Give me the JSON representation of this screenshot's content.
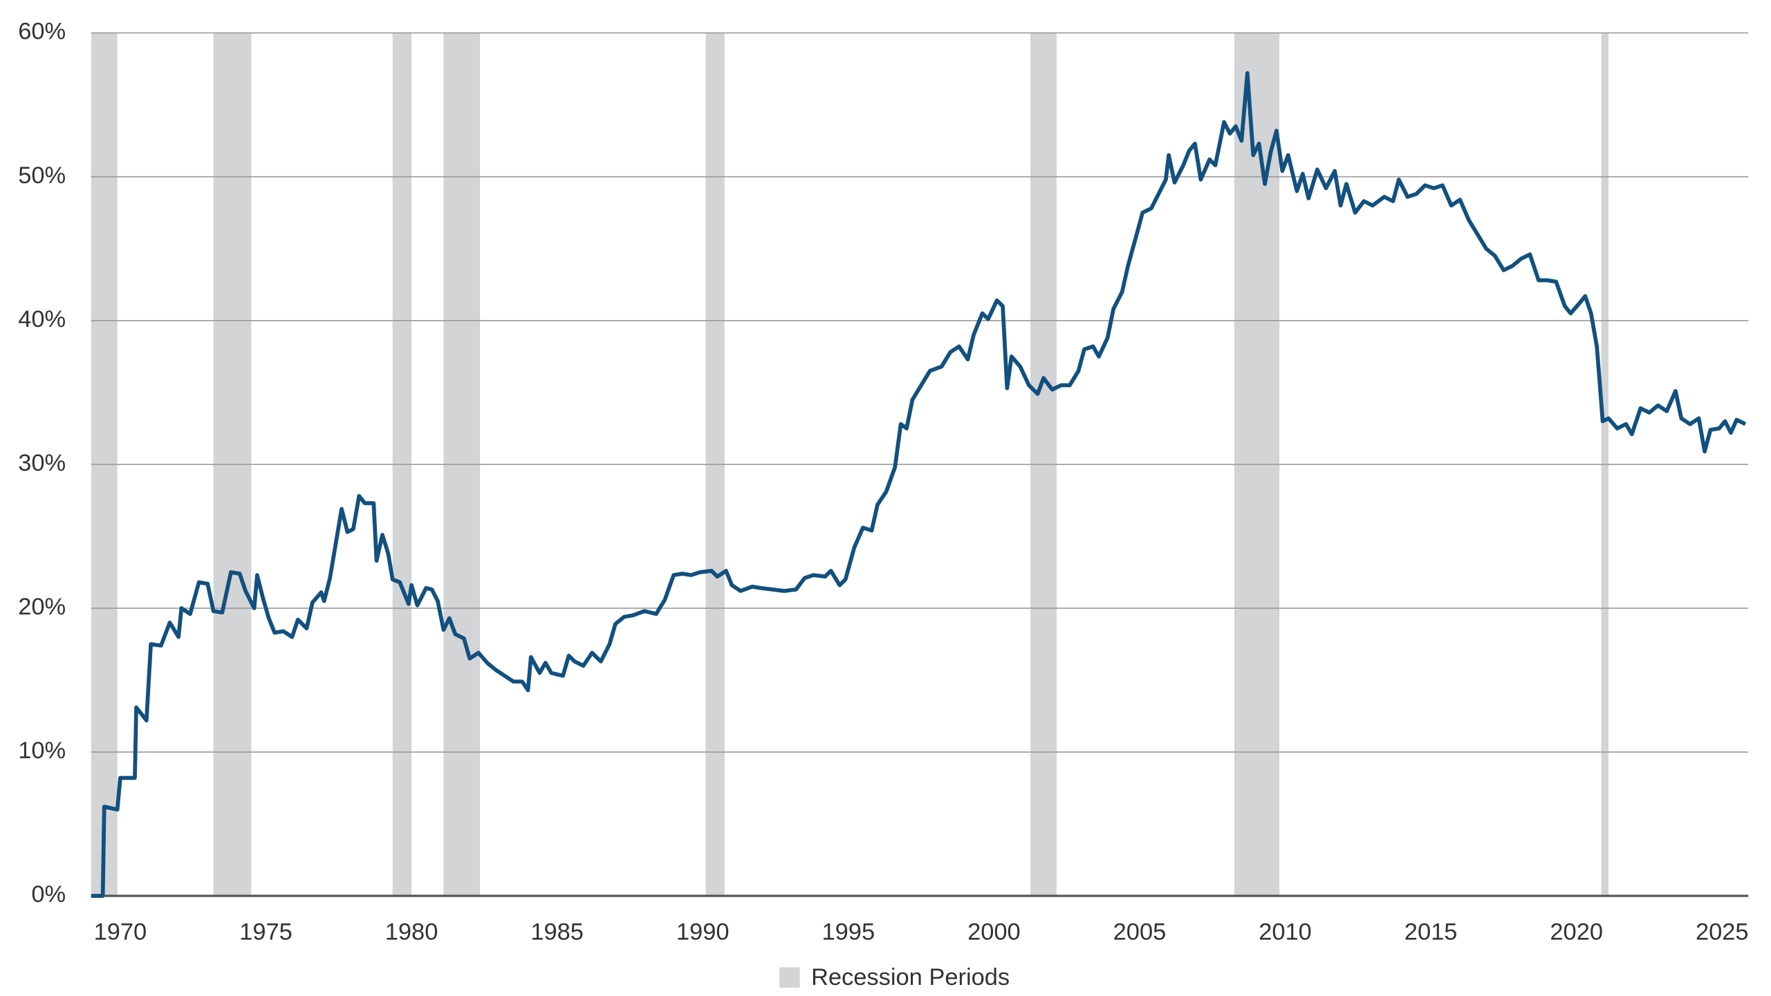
{
  "chart_data": {
    "type": "line",
    "color": "#12507f",
    "x": [
      1969.0,
      1969.4,
      1969.45,
      1969.9,
      1970.0,
      1970.5,
      1970.55,
      1970.9,
      1971.05,
      1971.4,
      1971.7,
      1972.0,
      1972.1,
      1972.4,
      1972.7,
      1973.0,
      1973.2,
      1973.5,
      1973.8,
      1974.1,
      1974.3,
      1974.6,
      1974.7,
      1974.9,
      1975.1,
      1975.3,
      1975.6,
      1975.9,
      1976.1,
      1976.4,
      1976.6,
      1976.9,
      1977.0,
      1977.2,
      1977.4,
      1977.6,
      1977.8,
      1978.0,
      1978.2,
      1978.4,
      1978.7,
      1978.8,
      1979.0,
      1979.2,
      1979.35,
      1979.6,
      1979.9,
      1980.0,
      1980.2,
      1980.5,
      1980.7,
      1980.9,
      1981.1,
      1981.3,
      1981.5,
      1981.8,
      1982.0,
      1982.3,
      1982.6,
      1982.9,
      1983.2,
      1983.5,
      1983.8,
      1984.0,
      1984.1,
      1984.4,
      1984.6,
      1984.8,
      1985.2,
      1985.4,
      1985.6,
      1985.9,
      1986.2,
      1986.5,
      1986.8,
      1987.0,
      1987.3,
      1987.6,
      1988.0,
      1988.4,
      1988.7,
      1989.0,
      1989.3,
      1989.6,
      1989.9,
      1990.3,
      1990.5,
      1990.8,
      1991.0,
      1991.3,
      1991.7,
      1992.0,
      1992.4,
      1992.8,
      1993.2,
      1993.5,
      1993.8,
      1994.2,
      1994.4,
      1994.7,
      1994.9,
      1995.2,
      1995.5,
      1995.8,
      1996.0,
      1996.3,
      1996.6,
      1996.8,
      1997.0,
      1997.2,
      1997.5,
      1997.8,
      1998.2,
      1998.5,
      1998.8,
      1999.1,
      1999.3,
      1999.6,
      1999.8,
      2000.1,
      2000.3,
      2000.45,
      2000.6,
      2000.9,
      2001.2,
      2001.5,
      2001.7,
      2002.0,
      2002.3,
      2002.6,
      2002.9,
      2003.1,
      2003.4,
      2003.6,
      2003.9,
      2004.1,
      2004.4,
      2004.6,
      2004.9,
      2005.1,
      2005.4,
      2005.7,
      2005.9,
      2006.0,
      2006.2,
      2006.5,
      2006.7,
      2006.9,
      2007.1,
      2007.4,
      2007.6,
      2007.9,
      2008.1,
      2008.3,
      2008.5,
      2008.7,
      2008.9,
      2009.1,
      2009.3,
      2009.5,
      2009.7,
      2009.9,
      2010.1,
      2010.4,
      2010.6,
      2010.8,
      2011.1,
      2011.4,
      2011.7,
      2011.9,
      2012.1,
      2012.4,
      2012.7,
      2013.0,
      2013.4,
      2013.7,
      2013.9,
      2014.2,
      2014.5,
      2014.8,
      2015.1,
      2015.4,
      2015.7,
      2016.0,
      2016.3,
      2016.6,
      2016.9,
      2017.2,
      2017.5,
      2017.8,
      2018.1,
      2018.4,
      2018.7,
      2019.0,
      2019.3,
      2019.6,
      2019.8,
      2020.1,
      2020.3,
      2020.5,
      2020.7,
      2020.9,
      2021.1,
      2021.4,
      2021.7,
      2021.9,
      2022.2,
      2022.5,
      2022.8,
      2023.1,
      2023.4,
      2023.6,
      2023.9,
      2024.2,
      2024.4,
      2024.6,
      2024.9,
      2025.1,
      2025.3,
      2025.5,
      2025.8
    ],
    "values": [
      0,
      0,
      6.2,
      6.0,
      8.2,
      8.2,
      13.1,
      12.2,
      17.5,
      17.4,
      19.0,
      18.0,
      20,
      19.6,
      21.8,
      21.7,
      19.8,
      19.7,
      22.5,
      22.4,
      21.2,
      20.0,
      22.3,
      20.7,
      19.3,
      18.3,
      18.4,
      18.0,
      19.2,
      18.6,
      20.4,
      21.1,
      20.5,
      22.1,
      24.5,
      26.9,
      25.3,
      25.5,
      27.8,
      27.3,
      27.3,
      23.3,
      25.1,
      23.8,
      22.0,
      21.8,
      20.3,
      21.6,
      20.2,
      21.4,
      21.3,
      20.5,
      18.5,
      19.3,
      18.2,
      17.9,
      16.5,
      16.9,
      16.2,
      15.7,
      15.3,
      14.9,
      14.9,
      14.3,
      16.6,
      15.5,
      16.2,
      15.5,
      15.3,
      16.7,
      16.3,
      16.0,
      16.9,
      16.3,
      17.5,
      18.9,
      19.4,
      19.5,
      19.8,
      19.6,
      20.6,
      22.3,
      22.4,
      22.3,
      22.5,
      22.6,
      22.2,
      22.6,
      21.6,
      21.2,
      21.5,
      21.4,
      21.3,
      21.2,
      21.3,
      22.1,
      22.3,
      22.2,
      22.6,
      21.6,
      22.0,
      24.2,
      25.6,
      25.4,
      27.2,
      28.1,
      29.8,
      32.8,
      32.5,
      34.5,
      35.5,
      36.5,
      36.8,
      37.8,
      38.2,
      37.3,
      39.0,
      40.5,
      40.1,
      41.4,
      41.0,
      35.3,
      37.5,
      36.8,
      35.5,
      34.9,
      36.0,
      35.2,
      35.5,
      35.5,
      36.5,
      38.0,
      38.2,
      37.5,
      38.8,
      40.8,
      42.0,
      43.8,
      46.0,
      47.5,
      47.8,
      49.0,
      49.8,
      51.5,
      49.6,
      50.8,
      51.8,
      52.3,
      49.8,
      51.2,
      50.8,
      53.8,
      53.0,
      53.5,
      52.5,
      57.2,
      51.5,
      52.3,
      49.5,
      51.7,
      53.2,
      50.4,
      51.5,
      49.0,
      50.2,
      48.5,
      50.5,
      49.2,
      50.4,
      48.0,
      49.5,
      47.5,
      48.3,
      48.0,
      48.6,
      48.3,
      49.8,
      48.6,
      48.8,
      49.4,
      49.2,
      49.4,
      48.0,
      48.4,
      47.0,
      46.0,
      45.0,
      44.5,
      43.5,
      43.8,
      44.3,
      44.6,
      42.8,
      42.8,
      42.7,
      41.0,
      40.5,
      41.2,
      41.7,
      40.5,
      38.2,
      33.0,
      33.2,
      32.5,
      32.8,
      32.1,
      33.9,
      33.6,
      34.1,
      33.7,
      35.1,
      33.2,
      32.8,
      33.2,
      30.9,
      32.4,
      32.5,
      33.0,
      32.2,
      33.1,
      32.8
    ],
    "xlim": [
      1969,
      2025.9
    ],
    "xticks": [
      1970,
      1975,
      1980,
      1985,
      1990,
      1995,
      2000,
      2005,
      2010,
      2015,
      2020,
      2025
    ],
    "ylim": [
      0,
      60
    ],
    "yticks": [
      {
        "value": 0,
        "label": "0%"
      },
      {
        "value": 10,
        "label": "10%"
      },
      {
        "value": 20,
        "label": "20%"
      },
      {
        "value": 30,
        "label": "30%"
      },
      {
        "value": 40,
        "label": "40%"
      },
      {
        "value": 50,
        "label": "50%"
      },
      {
        "value": 60,
        "label": "60%"
      }
    ],
    "grid": true,
    "recession_label": "Recession Periods",
    "recession_color": "#d3d4d6",
    "recessions": [
      {
        "start": 1969.0,
        "end": 1969.9
      },
      {
        "start": 1973.2,
        "end": 1974.5
      },
      {
        "start": 1979.35,
        "end": 1980.0
      },
      {
        "start": 1981.1,
        "end": 1982.35
      },
      {
        "start": 1990.1,
        "end": 1990.75
      },
      {
        "start": 2001.25,
        "end": 2002.15
      },
      {
        "start": 2008.25,
        "end": 2009.8
      },
      {
        "start": 2020.85,
        "end": 2021.1
      }
    ]
  }
}
